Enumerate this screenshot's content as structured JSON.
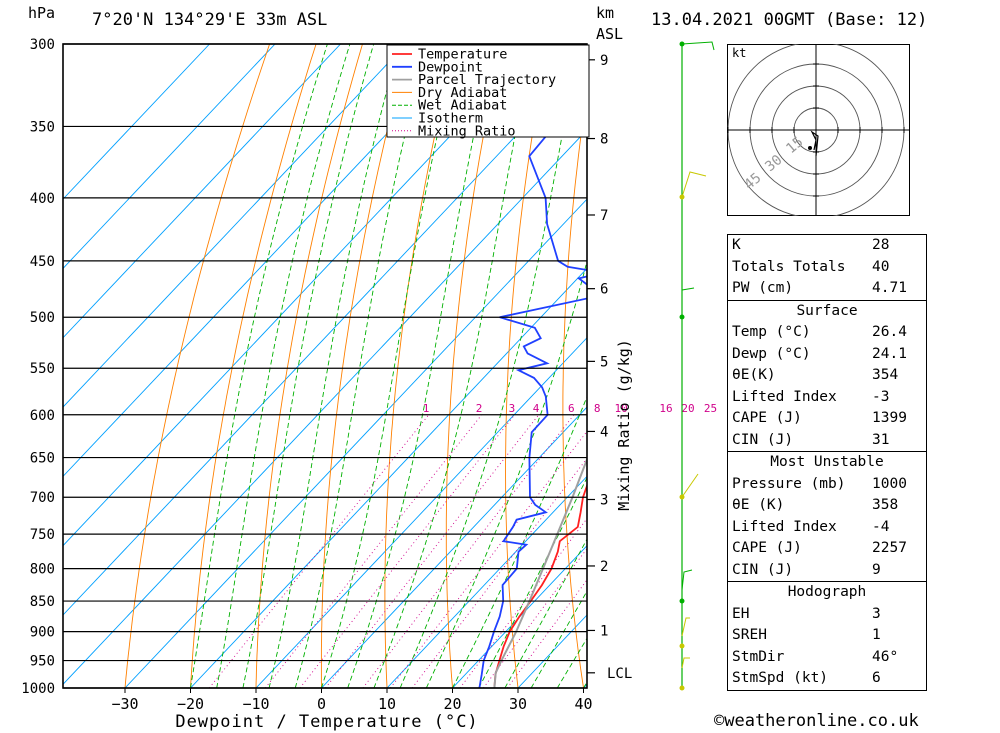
{
  "header": {
    "pressure_unit": "hPa",
    "location": "7°20'N  134°29'E  33m  ASL",
    "km_label": "km",
    "asl_label": "ASL",
    "datetime": "13.04.2021  00GMT  (Base: 12)"
  },
  "chart_data": {
    "type": "line",
    "subtype": "skew-T log-P sounding",
    "xlabel": "Dewpoint / Temperature (°C)",
    "ylabel": "hPa",
    "right_axis_label": "Mixing Ratio (g/kg)",
    "pressure_ticks": [
      300,
      350,
      400,
      450,
      500,
      550,
      600,
      650,
      700,
      750,
      800,
      850,
      900,
      950,
      1000
    ],
    "temp_ticks": [
      -30,
      -20,
      -10,
      0,
      10,
      20,
      30,
      40
    ],
    "xlim": [
      -40,
      40
    ],
    "ylim": [
      1000,
      300
    ],
    "km_ticks": [
      {
        "km": 1,
        "p": 898
      },
      {
        "km": 2,
        "p": 796
      },
      {
        "km": 3,
        "p": 703
      },
      {
        "km": 4,
        "p": 619
      },
      {
        "km": 5,
        "p": 543
      },
      {
        "km": 6,
        "p": 474
      },
      {
        "km": 7,
        "p": 413
      },
      {
        "km": 8,
        "p": 358
      },
      {
        "km": 9,
        "p": 309
      }
    ],
    "lcl": {
      "label": "LCL",
      "p": 972
    },
    "mixing_ratio_labels": [
      "1",
      "2",
      "3",
      "4",
      "6",
      "8",
      "10",
      "16",
      "20",
      "25"
    ],
    "mixing_ratio_values": [
      1,
      2,
      3,
      4,
      6,
      8,
      10,
      16,
      20,
      25
    ],
    "legend": {
      "entries": [
        "Temperature",
        "Dewpoint",
        "Parcel Trajectory",
        "Dry Adiabat",
        "Wet Adiabat",
        "Isotherm",
        "Mixing Ratio"
      ],
      "colors": [
        "#ff2020",
        "#2040ff",
        "#a0a0a0",
        "#ff8000",
        "#00b000",
        "#00a0ff",
        "#d0008a"
      ],
      "placement": "top-right"
    },
    "series": [
      {
        "name": "Temperature",
        "color": "#ff2020",
        "points": [
          [
            1000,
            26.4
          ],
          [
            975,
            24.6
          ],
          [
            950,
            23.2
          ],
          [
            925,
            21.8
          ],
          [
            900,
            20.6
          ],
          [
            875,
            19.9
          ],
          [
            850,
            19.4
          ],
          [
            825,
            18.8
          ],
          [
            800,
            17.9
          ],
          [
            775,
            16.4
          ],
          [
            760,
            15.2
          ],
          [
            740,
            15.9
          ],
          [
            720,
            14.2
          ],
          [
            700,
            12.4
          ],
          [
            650,
            8.8
          ],
          [
            600,
            4.4
          ],
          [
            550,
            -0.2
          ],
          [
            520,
            -3.2
          ],
          [
            500,
            -4.6
          ],
          [
            480,
            -7.2
          ],
          [
            470,
            -8.5
          ],
          [
            460,
            -9.0
          ],
          [
            450,
            -10.5
          ],
          [
            400,
            -17.4
          ],
          [
            360,
            -23.5
          ],
          [
            350,
            -25.0
          ],
          [
            340,
            -27.2
          ],
          [
            320,
            -30.8
          ],
          [
            300,
            -34.5
          ]
        ]
      },
      {
        "name": "Dewpoint",
        "color": "#2040ff",
        "points": [
          [
            1000,
            24.1
          ],
          [
            975,
            22.5
          ],
          [
            950,
            20.8
          ],
          [
            925,
            19.6
          ],
          [
            900,
            18.2
          ],
          [
            875,
            16.9
          ],
          [
            850,
            15.2
          ],
          [
            825,
            12.8
          ],
          [
            800,
            12.6
          ],
          [
            775,
            10.4
          ],
          [
            765,
            10.6
          ],
          [
            760,
            6.6
          ],
          [
            750,
            6.3
          ],
          [
            740,
            6.0
          ],
          [
            730,
            5.5
          ],
          [
            720,
            8.9
          ],
          [
            710,
            6.2
          ],
          [
            700,
            4.3
          ],
          [
            650,
            -1.5
          ],
          [
            620,
            -4.8
          ],
          [
            600,
            -4.9
          ],
          [
            580,
            -7.8
          ],
          [
            570,
            -9.7
          ],
          [
            560,
            -12.3
          ],
          [
            552,
            -15.8
          ],
          [
            545,
            -12.4
          ],
          [
            535,
            -16.8
          ],
          [
            528,
            -18.4
          ],
          [
            520,
            -17.0
          ],
          [
            510,
            -19.4
          ],
          [
            500,
            -26.3
          ],
          [
            480,
            -13.9
          ],
          [
            465,
            -19.8
          ],
          [
            460,
            -17.0
          ],
          [
            455,
            -23.2
          ],
          [
            450,
            -25.5
          ],
          [
            420,
            -32.5
          ],
          [
            400,
            -36.5
          ],
          [
            370,
            -45.0
          ],
          [
            350,
            -45.5
          ],
          [
            330,
            -46.5
          ],
          [
            320,
            -42.5
          ],
          [
            310,
            -36.5
          ],
          [
            300,
            -41.5
          ]
        ]
      },
      {
        "name": "Parcel Trajectory",
        "color": "#a0a0a0",
        "points": [
          [
            1000,
            26.4
          ],
          [
            972,
            24.4
          ],
          [
            950,
            23.5
          ],
          [
            900,
            21.6
          ],
          [
            850,
            19.2
          ],
          [
            800,
            16.6
          ],
          [
            750,
            13.8
          ],
          [
            700,
            10.8
          ],
          [
            650,
            7.4
          ],
          [
            600,
            3.8
          ],
          [
            550,
            -0.4
          ],
          [
            500,
            -5.2
          ],
          [
            450,
            -10.8
          ],
          [
            400,
            -17.5
          ],
          [
            370,
            -22.0
          ]
        ]
      }
    ]
  },
  "hodograph": {
    "unit": "kt",
    "ring_labels": [
      "15",
      "30",
      "45"
    ],
    "storm_dir_deg": 46,
    "storm_speed_kt": 6
  },
  "indices": {
    "rows": [
      [
        "K",
        "28"
      ],
      [
        "Totals Totals",
        "40"
      ],
      [
        "PW (cm)",
        "4.71"
      ]
    ]
  },
  "surface": {
    "title": "Surface",
    "rows": [
      [
        "Temp (°C)",
        "26.4"
      ],
      [
        "Dewp (°C)",
        "24.1"
      ],
      [
        "θE(K)",
        "354"
      ],
      [
        "Lifted Index",
        "-3"
      ],
      [
        "CAPE (J)",
        "1399"
      ],
      [
        "CIN (J)",
        "31"
      ]
    ]
  },
  "most_unstable": {
    "title": "Most Unstable",
    "rows": [
      [
        "Pressure (mb)",
        "1000"
      ],
      [
        "θE (K)",
        "358"
      ],
      [
        "Lifted Index",
        "-4"
      ],
      [
        "CAPE (J)",
        "2257"
      ],
      [
        "CIN (J)",
        "9"
      ]
    ]
  },
  "hodograph_table": {
    "title": "Hodograph",
    "rows": [
      [
        "EH",
        "3"
      ],
      [
        "SREH",
        "1"
      ],
      [
        "StmDir",
        "46°"
      ],
      [
        "StmSpd (kt)",
        "6"
      ]
    ]
  },
  "copyright": "©weatheronline.co.uk"
}
